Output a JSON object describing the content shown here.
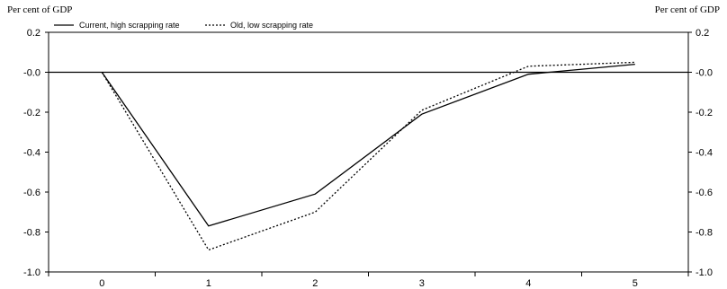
{
  "chart_data": {
    "type": "line",
    "y_unit_label_left": "Per cent of GDP",
    "y_unit_label_right": "Per cent of GDP",
    "x": [
      0,
      1,
      2,
      3,
      4,
      5
    ],
    "x_ticks": [
      "0",
      "1",
      "2",
      "3",
      "4",
      "5"
    ],
    "y_ticks": [
      "0.2",
      "-0.0",
      "-0.2",
      "-0.4",
      "-0.6",
      "-0.8",
      "-1.0"
    ],
    "ylim": [
      -1.0,
      0.2
    ],
    "xlim": [
      -0.5,
      5.5
    ],
    "grid": false,
    "zero_line": true,
    "legend_position": "top-left",
    "series": [
      {
        "name": "Current, high scrapping rate",
        "style": "solid",
        "color": "#000000",
        "values": [
          0.0,
          -0.77,
          -0.61,
          -0.21,
          -0.01,
          0.04
        ]
      },
      {
        "name": "Old, low scrapping rate",
        "style": "dotted",
        "color": "#000000",
        "values": [
          0.0,
          -0.89,
          -0.7,
          -0.19,
          0.03,
          0.05
        ]
      }
    ]
  }
}
